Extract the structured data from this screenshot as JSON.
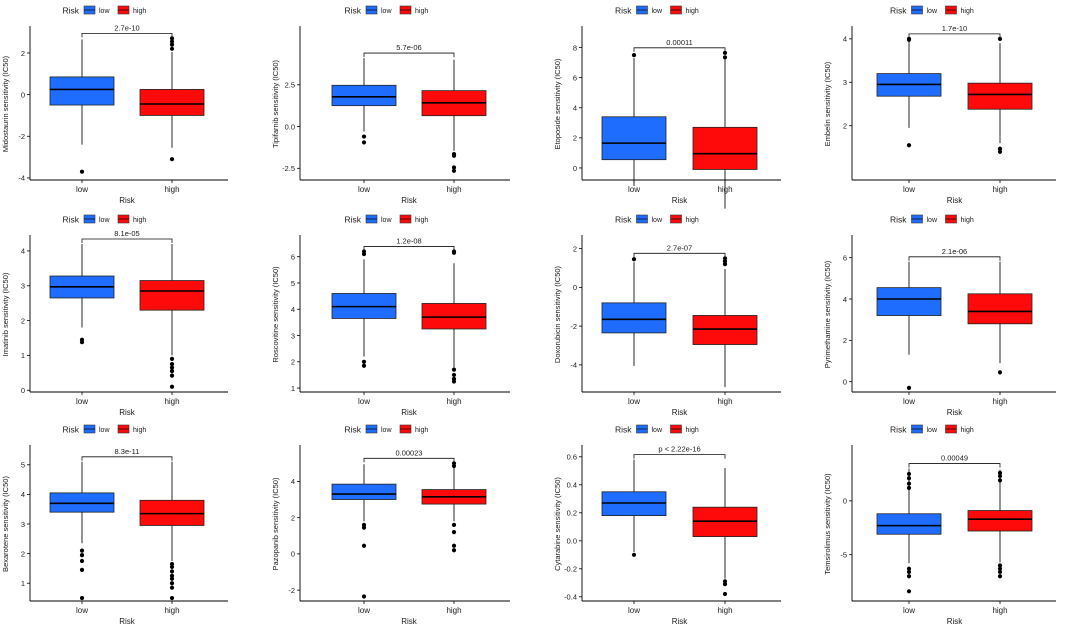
{
  "colors": {
    "low": "#1f6dff",
    "high": "#ff0a0a",
    "axis": "#000000"
  },
  "legend": {
    "title": "Risk",
    "low": "low",
    "high": "high"
  },
  "chart_data": [
    {
      "type": "box",
      "xlabel": "Risk",
      "ylabel": "Midostaurin sensitivity (IC50)",
      "categories": [
        "low",
        "high"
      ],
      "yticks": [
        -4,
        -2,
        0,
        2
      ],
      "ylim": [
        -4.1,
        3.2
      ],
      "pvalue": "2.7e-10",
      "boxes": [
        {
          "q1": -0.5,
          "med": 0.25,
          "q3": 0.85,
          "wlo": -2.4,
          "whi": 2.65,
          "out": [
            -3.7
          ]
        },
        {
          "q1": -1.0,
          "med": -0.45,
          "q3": 0.25,
          "wlo": -2.55,
          "whi": 2.05,
          "out": [
            2.2,
            2.4,
            2.55,
            2.7,
            -3.1
          ]
        }
      ]
    },
    {
      "type": "box",
      "xlabel": "Risk",
      "ylabel": "Tipifarnib sensitivity (IC50)",
      "categories": [
        "low",
        "high"
      ],
      "yticks": [
        -2.5,
        0.0,
        2.5
      ],
      "ylim": [
        -3.2,
        5.9
      ],
      "pvalue": "5.7e-06",
      "boxes": [
        {
          "q1": 1.25,
          "med": 1.78,
          "q3": 2.47,
          "wlo": -0.3,
          "whi": 4.1,
          "out": [
            -0.6,
            -0.95
          ]
        },
        {
          "q1": 0.65,
          "med": 1.42,
          "q3": 2.15,
          "wlo": -1.45,
          "whi": 4.0,
          "out": [
            -1.65,
            -1.75,
            -2.45,
            -2.65
          ]
        }
      ]
    },
    {
      "type": "box",
      "xlabel": "Risk",
      "ylabel": "Etoposide sensitivity (IC50)",
      "categories": [
        "low",
        "high"
      ],
      "yticks": [
        0,
        2,
        4,
        6,
        8
      ],
      "ylim": [
        -0.8,
        9.3
      ],
      "pvalue": "0.00011",
      "boxes": [
        {
          "q1": 0.55,
          "med": 1.65,
          "q3": 3.4,
          "wlo": -1.2,
          "whi": 7.3,
          "out": [
            7.5
          ]
        },
        {
          "q1": -0.1,
          "med": 0.95,
          "q3": 2.7,
          "wlo": -2.7,
          "whi": 7.2,
          "out": [
            7.35,
            7.65
          ]
        }
      ]
    },
    {
      "type": "box",
      "xlabel": "Risk",
      "ylabel": "Embelin sensitivity (IC50)",
      "categories": [
        "low",
        "high"
      ],
      "yticks": [
        2,
        3,
        4
      ],
      "ylim": [
        0.75,
        4.25
      ],
      "pvalue": "1.7e-10",
      "boxes": [
        {
          "q1": 2.68,
          "med": 2.95,
          "q3": 3.2,
          "wlo": 1.95,
          "whi": 3.95,
          "out": [
            4.0,
            3.98,
            1.55
          ]
        },
        {
          "q1": 2.38,
          "med": 2.72,
          "q3": 2.98,
          "wlo": 1.6,
          "whi": 3.9,
          "out": [
            4.0,
            1.47,
            1.4
          ]
        }
      ]
    },
    {
      "type": "box",
      "xlabel": "Risk",
      "ylabel": "Imatinib sensitivity (IC50)",
      "categories": [
        "low",
        "high"
      ],
      "yticks": [
        0,
        1,
        2,
        3,
        4
      ],
      "ylim": [
        -0.05,
        4.4
      ],
      "pvalue": "8.1e-05",
      "boxes": [
        {
          "q1": 2.65,
          "med": 2.97,
          "q3": 3.28,
          "wlo": 1.8,
          "whi": 4.2,
          "out": [
            1.45,
            1.38
          ]
        },
        {
          "q1": 2.3,
          "med": 2.85,
          "q3": 3.15,
          "wlo": 1.0,
          "whi": 4.2,
          "out": [
            0.9,
            0.75,
            0.65,
            0.55,
            0.42,
            0.1
          ]
        }
      ]
    },
    {
      "type": "box",
      "xlabel": "Risk",
      "ylabel": "Roscovitine sensitivity (IC50)",
      "categories": [
        "low",
        "high"
      ],
      "yticks": [
        1,
        2,
        3,
        4,
        5,
        6
      ],
      "ylim": [
        0.85,
        6.75
      ],
      "pvalue": "1.2e-08",
      "boxes": [
        {
          "q1": 3.65,
          "med": 4.1,
          "q3": 4.6,
          "wlo": 2.2,
          "whi": 5.9,
          "out": [
            6.1,
            6.2,
            2.0,
            1.85
          ]
        },
        {
          "q1": 3.25,
          "med": 3.7,
          "q3": 4.22,
          "wlo": 1.75,
          "whi": 5.75,
          "out": [
            6.15,
            6.2,
            1.7,
            1.5,
            1.35,
            1.25
          ]
        }
      ]
    },
    {
      "type": "box",
      "xlabel": "Risk",
      "ylabel": "Doxorubicin sensitivity (IC50)",
      "categories": [
        "low",
        "high"
      ],
      "yticks": [
        -4,
        -2,
        0,
        2
      ],
      "ylim": [
        -5.4,
        2.6
      ],
      "pvalue": "2.7e-07",
      "boxes": [
        {
          "q1": -2.35,
          "med": -1.65,
          "q3": -0.8,
          "wlo": -4.05,
          "whi": 1.3,
          "out": [
            1.45
          ]
        },
        {
          "q1": -2.95,
          "med": -2.15,
          "q3": -1.45,
          "wlo": -5.15,
          "whi": 0.95,
          "out": [
            1.2,
            1.35,
            1.5
          ]
        }
      ]
    },
    {
      "type": "box",
      "xlabel": "Risk",
      "ylabel": "Pyrimethamine sensitivity (IC50)",
      "categories": [
        "low",
        "high"
      ],
      "yticks": [
        0,
        2,
        4,
        6
      ],
      "ylim": [
        -0.5,
        7.0
      ],
      "pvalue": "2.1e-06",
      "boxes": [
        {
          "q1": 3.2,
          "med": 4.0,
          "q3": 4.55,
          "wlo": 1.3,
          "whi": 5.8,
          "out": [
            -0.3
          ]
        },
        {
          "q1": 2.8,
          "med": 3.4,
          "q3": 4.25,
          "wlo": 0.9,
          "whi": 5.8,
          "out": [
            0.45
          ]
        }
      ]
    },
    {
      "type": "box",
      "xlabel": "Risk",
      "ylabel": "Bexarotene sensitivity (IC50)",
      "categories": [
        "low",
        "high"
      ],
      "yticks": [
        1,
        2,
        3,
        4,
        5
      ],
      "ylim": [
        0.4,
        5.6
      ],
      "pvalue": "8.3e-11",
      "boxes": [
        {
          "q1": 3.4,
          "med": 3.7,
          "q3": 4.05,
          "wlo": 2.35,
          "whi": 5.1,
          "out": [
            2.1,
            1.95,
            1.75,
            1.45,
            0.5
          ]
        },
        {
          "q1": 2.95,
          "med": 3.35,
          "q3": 3.8,
          "wlo": 1.75,
          "whi": 5.1,
          "out": [
            1.65,
            1.55,
            1.4,
            1.25,
            1.15,
            1.0,
            0.85,
            0.5
          ]
        }
      ]
    },
    {
      "type": "box",
      "xlabel": "Risk",
      "ylabel": "Pazopanib sensitivity (IC50)",
      "categories": [
        "low",
        "high"
      ],
      "yticks": [
        -2,
        0,
        2,
        4
      ],
      "ylim": [
        -2.6,
        5.9
      ],
      "pvalue": "0.00023",
      "boxes": [
        {
          "q1": 3.0,
          "med": 3.3,
          "q3": 3.85,
          "wlo": 1.8,
          "whi": 4.95,
          "out": [
            1.6,
            1.45,
            0.45,
            -2.35
          ]
        },
        {
          "q1": 2.75,
          "med": 3.15,
          "q3": 3.55,
          "wlo": 1.8,
          "whi": 4.75,
          "out": [
            5.0,
            4.85,
            1.6,
            1.2,
            0.45,
            0.2
          ]
        }
      ]
    },
    {
      "type": "box",
      "xlabel": "Risk",
      "ylabel": "Cytarabine sensitivity (IC50)",
      "categories": [
        "low",
        "high"
      ],
      "yticks": [
        -0.4,
        -0.2,
        0.0,
        0.2,
        0.4,
        0.6
      ],
      "ylim": [
        -0.43,
        0.67
      ],
      "pvalue": "p < 2.22e-16",
      "boxes": [
        {
          "q1": 0.18,
          "med": 0.27,
          "q3": 0.35,
          "wlo": -0.08,
          "whi": 0.58,
          "out": [
            -0.1
          ]
        },
        {
          "q1": 0.03,
          "med": 0.14,
          "q3": 0.24,
          "wlo": -0.27,
          "whi": 0.52,
          "out": [
            -0.29,
            -0.31,
            -0.38
          ]
        }
      ]
    },
    {
      "type": "box",
      "xlabel": "Risk",
      "ylabel": "Temsirolimus sensitivity (IC50)",
      "categories": [
        "low",
        "high"
      ],
      "yticks": [
        -5,
        0
      ],
      "ylim": [
        -9.3,
        5.0
      ],
      "pvalue": "0.00049",
      "boxes": [
        {
          "q1": -3.1,
          "med": -2.3,
          "q3": -1.2,
          "wlo": -5.8,
          "whi": 3.0,
          "out": [
            2.5,
            2.1,
            1.6,
            1.2,
            -6.3,
            -6.6,
            -7.0,
            -8.4
          ]
        },
        {
          "q1": -2.8,
          "med": -1.7,
          "q3": -0.9,
          "wlo": -5.7,
          "whi": 2.9,
          "out": [
            2.6,
            2.3,
            1.9,
            -6.0,
            -6.3,
            -6.6,
            -7.0
          ]
        }
      ]
    }
  ]
}
